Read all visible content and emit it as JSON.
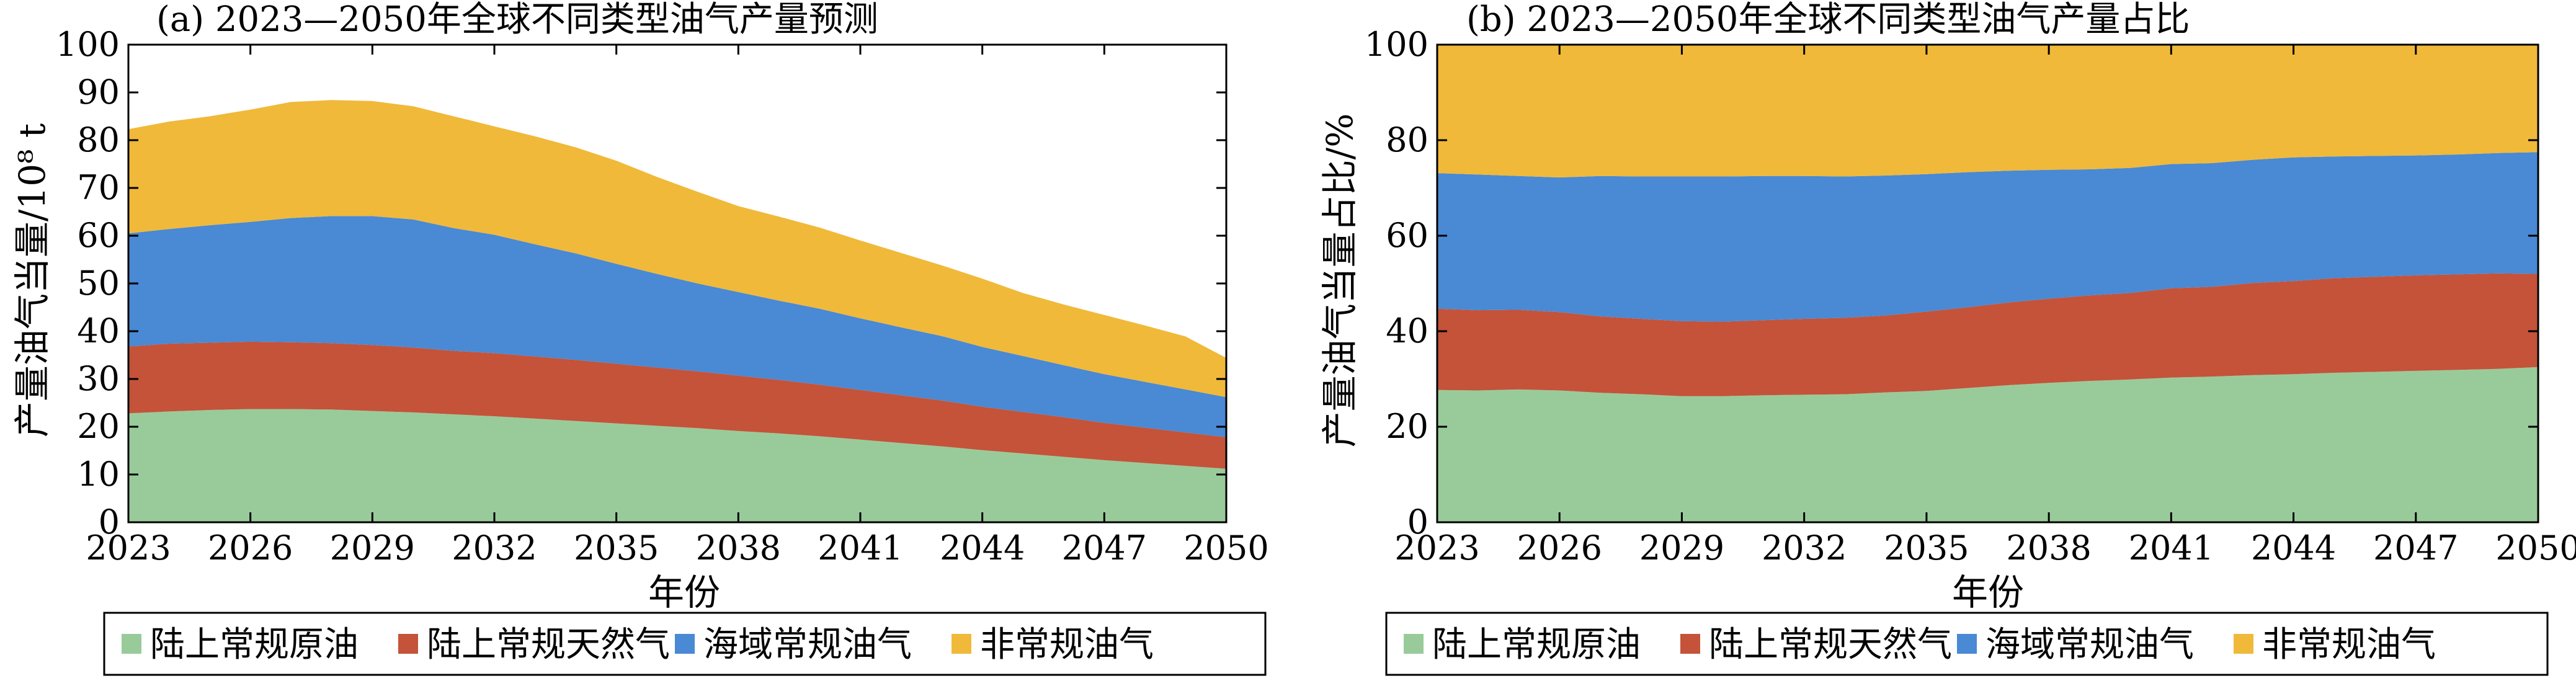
{
  "colors": {
    "陆上常规原油": "#99CB9A",
    "陆上常规天然气": "#C4533A",
    "海域常规油气": "#4A89D4",
    "非常规油气": "#F0B93A"
  },
  "chart_data": [
    {
      "type": "area",
      "stacked": true,
      "title": "(a) 2023—2050年全球不同类型油气产量预测",
      "xlabel": "年份",
      "ylabel": "产量油气当量/10⁸ t",
      "xlim": [
        2023,
        2050
      ],
      "ylim": [
        0,
        100
      ],
      "xticks": [
        2023,
        2026,
        2029,
        2032,
        2035,
        2038,
        2041,
        2044,
        2047,
        2050
      ],
      "yticks": [
        0,
        10,
        20,
        30,
        40,
        50,
        60,
        70,
        80,
        90,
        100
      ],
      "grid": false,
      "x": [
        2023,
        2024,
        2025,
        2026,
        2027,
        2028,
        2029,
        2030,
        2031,
        2032,
        2033,
        2034,
        2035,
        2036,
        2037,
        2038,
        2039,
        2040,
        2041,
        2042,
        2043,
        2044,
        2045,
        2046,
        2047,
        2048,
        2049,
        2050
      ],
      "series": [
        {
          "name": "陆上常规原油",
          "values": [
            22.8,
            23.2,
            23.5,
            23.7,
            23.7,
            23.6,
            23.3,
            23.0,
            22.6,
            22.2,
            21.7,
            21.2,
            20.7,
            20.2,
            19.7,
            19.1,
            18.6,
            18.0,
            17.3,
            16.6,
            15.9,
            15.1,
            14.4,
            13.7,
            13.0,
            12.4,
            11.8,
            11.2
          ]
        },
        {
          "name": "陆上常规天然气",
          "values": [
            14.0,
            14.2,
            14.1,
            14.1,
            14.0,
            13.9,
            13.8,
            13.6,
            13.3,
            13.2,
            13.0,
            12.8,
            12.5,
            12.2,
            11.9,
            11.6,
            11.2,
            10.8,
            10.4,
            10.0,
            9.6,
            9.1,
            8.7,
            8.3,
            7.8,
            7.4,
            7.0,
            6.6
          ]
        },
        {
          "name": "海域常规油气",
          "values": [
            23.7,
            24.0,
            24.6,
            25.1,
            26.0,
            26.6,
            27.0,
            26.8,
            25.7,
            24.8,
            23.5,
            22.3,
            20.9,
            19.6,
            18.4,
            17.5,
            16.6,
            15.9,
            15.0,
            14.2,
            13.5,
            12.5,
            11.7,
            10.9,
            10.2,
            9.6,
            9.0,
            8.4
          ]
        },
        {
          "name": "非常规油气",
          "values": [
            21.8,
            22.5,
            22.8,
            23.5,
            24.3,
            24.3,
            24.1,
            23.7,
            23.4,
            22.7,
            22.6,
            22.2,
            21.6,
            20.3,
            19.2,
            18.0,
            17.6,
            17.0,
            16.3,
            15.6,
            14.8,
            14.3,
            13.2,
            12.7,
            12.4,
            11.8,
            11.1,
            8.2
          ]
        }
      ]
    },
    {
      "type": "area",
      "stacked": true,
      "title": "(b) 2023—2050年全球不同类型油气产量占比",
      "xlabel": "年份",
      "ylabel": "产量油气当量占比/%",
      "xlim": [
        2023,
        2050
      ],
      "ylim": [
        0,
        100
      ],
      "xticks": [
        2023,
        2026,
        2029,
        2032,
        2035,
        2038,
        2041,
        2044,
        2047,
        2050
      ],
      "yticks": [
        0,
        20,
        40,
        60,
        80,
        100
      ],
      "grid": false,
      "x": [
        2023,
        2024,
        2025,
        2026,
        2027,
        2028,
        2029,
        2030,
        2031,
        2032,
        2033,
        2034,
        2035,
        2036,
        2037,
        2038,
        2039,
        2040,
        2041,
        2042,
        2043,
        2044,
        2045,
        2046,
        2047,
        2048,
        2049,
        2050
      ],
      "series": [
        {
          "name": "陆上常规原油",
          "values": [
            27.7,
            27.6,
            27.8,
            27.6,
            27.1,
            26.8,
            26.4,
            26.4,
            26.6,
            26.7,
            26.8,
            27.2,
            27.5,
            28.1,
            28.7,
            29.2,
            29.6,
            29.9,
            30.3,
            30.5,
            30.8,
            31.0,
            31.3,
            31.5,
            31.7,
            31.9,
            32.1,
            32.5
          ]
        },
        {
          "name": "陆上常规天然气",
          "values": [
            17.0,
            16.8,
            16.7,
            16.4,
            16.0,
            15.8,
            15.7,
            15.6,
            15.7,
            15.9,
            16.0,
            16.1,
            16.6,
            16.9,
            17.3,
            17.6,
            17.9,
            18.1,
            18.7,
            18.8,
            19.3,
            19.5,
            19.8,
            19.9,
            20.0,
            20.0,
            20.0,
            19.5
          ]
        },
        {
          "name": "海域常规油气",
          "values": [
            28.4,
            28.4,
            28.0,
            28.2,
            29.4,
            29.8,
            30.3,
            30.4,
            30.2,
            29.9,
            29.6,
            29.3,
            28.8,
            28.3,
            27.6,
            27.0,
            26.4,
            26.2,
            26.0,
            25.9,
            25.8,
            25.9,
            25.5,
            25.3,
            25.1,
            25.1,
            25.2,
            25.5
          ]
        },
        {
          "name": "非常规油气",
          "values": [
            26.9,
            27.2,
            27.5,
            27.8,
            27.5,
            27.6,
            27.6,
            27.6,
            27.5,
            27.5,
            27.6,
            27.4,
            27.1,
            26.7,
            26.4,
            26.2,
            26.1,
            25.8,
            25.0,
            24.8,
            24.1,
            23.6,
            23.4,
            23.3,
            23.2,
            23.0,
            22.7,
            22.5
          ]
        }
      ]
    }
  ],
  "legend": {
    "items": [
      "陆上常规原油",
      "陆上常规天然气",
      "海域常规油气",
      "非常规油气"
    ]
  }
}
